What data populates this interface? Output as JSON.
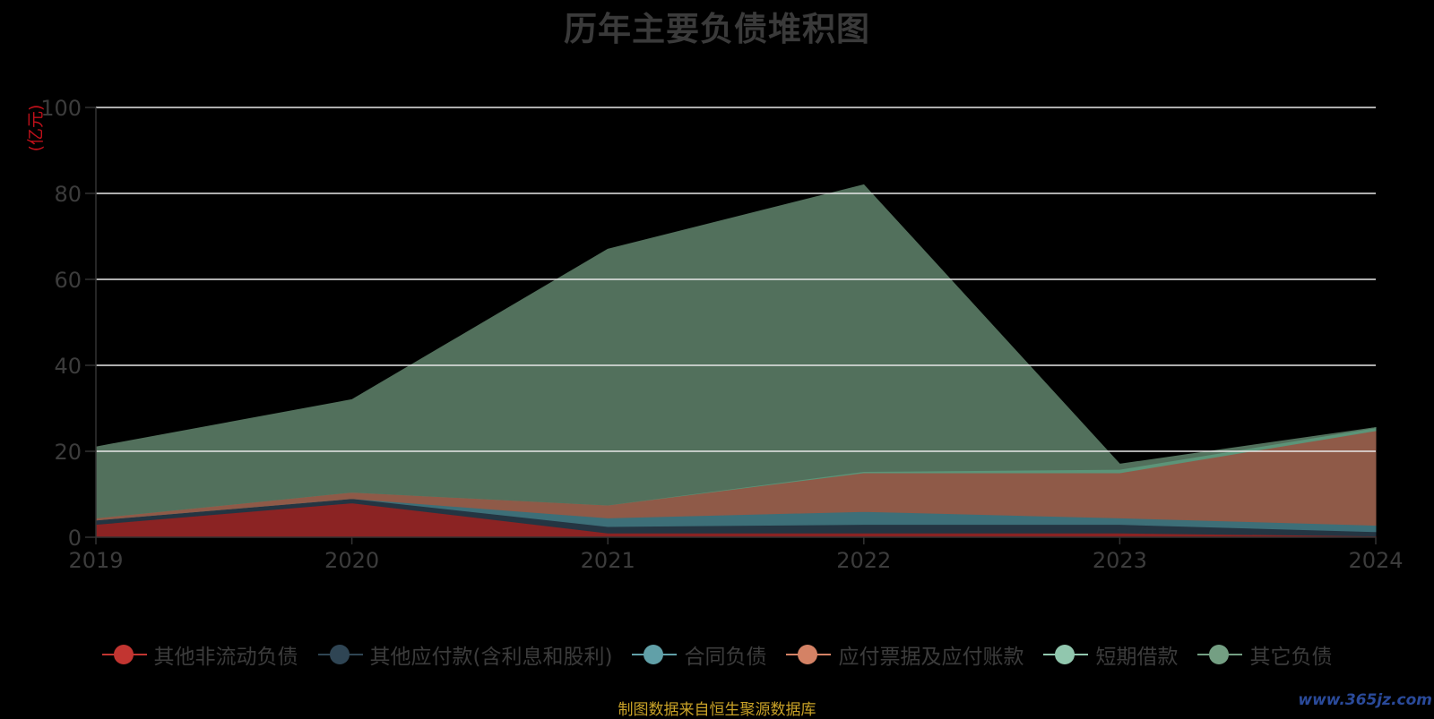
{
  "chart_data": {
    "type": "area",
    "stacked": true,
    "title": "历年主要负债堆积图",
    "unit_label": "(亿元)",
    "categories": [
      "2019",
      "2020",
      "2021",
      "2022",
      "2023",
      "2024"
    ],
    "ylim": [
      0,
      100
    ],
    "yticks": [
      0,
      20,
      40,
      60,
      80,
      100
    ],
    "grid": true,
    "legend_position": "bottom",
    "series": [
      {
        "name": "其他非流动负债",
        "color": "#8b2323",
        "marker_color": "#c23531",
        "values": [
          3.0,
          8.0,
          1.0,
          1.0,
          1.0,
          0.3
        ]
      },
      {
        "name": "其他应付款(含利息和股利)",
        "color": "#243542",
        "marker_color": "#2f4554",
        "values": [
          1.0,
          1.0,
          1.5,
          2.0,
          2.0,
          1.0
        ]
      },
      {
        "name": "合同负债",
        "color": "#3d6f78",
        "marker_color": "#61a0a8",
        "values": [
          0.0,
          0.0,
          2.0,
          3.0,
          1.5,
          1.5
        ]
      },
      {
        "name": "应付票据及应付账款",
        "color": "#8f5a48",
        "marker_color": "#d48265",
        "values": [
          0.5,
          1.5,
          3.0,
          9.0,
          10.5,
          22.0
        ]
      },
      {
        "name": "短期借款",
        "color": "#5c9478",
        "marker_color": "#91c7ae",
        "values": [
          0.0,
          0.0,
          0.0,
          0.3,
          0.8,
          0.7
        ]
      },
      {
        "name": "其它负债",
        "color": "#52705c",
        "marker_color": "#749f83",
        "values": [
          16.5,
          21.5,
          59.5,
          66.7,
          1.2,
          0.0
        ]
      }
    ]
  },
  "source_note": "制图数据来自恒生聚源数据库",
  "watermark": "www.365jz.com"
}
